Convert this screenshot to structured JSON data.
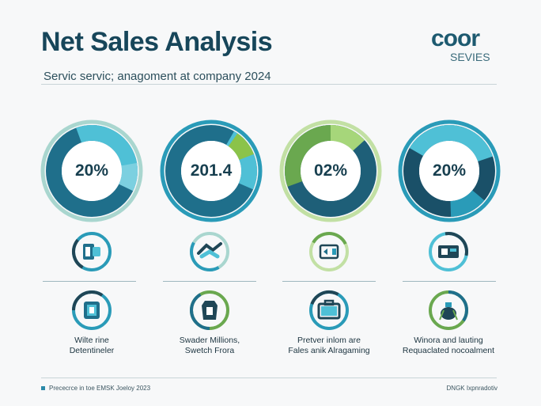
{
  "header": {
    "title": "Net Sales Analysis",
    "subtitle": "Servic servic; anagoment at company 2024"
  },
  "logo": {
    "main": "coor",
    "sub": "SEVIES"
  },
  "colors": {
    "navy": "#17465a",
    "teal_dark": "#1f6f8b",
    "teal": "#2a9bb8",
    "cyan": "#4fc0d6",
    "green": "#6aa84f",
    "light_green": "#a6d67a",
    "ring_pale": "#a9d6cf"
  },
  "cards": [
    {
      "value": "20%",
      "icon": "hand-tool-icon",
      "big_icon": "device-icon",
      "caption": [
        "Wilte rine",
        "Detentineler"
      ]
    },
    {
      "value": "201.4",
      "icon": "handshake-icon",
      "big_icon": "bag-icon",
      "caption": [
        "Swader Millions,",
        "Swetch Frora"
      ]
    },
    {
      "value": "02%",
      "icon": "wallet-card-icon",
      "big_icon": "briefcase-icon",
      "caption": [
        "Pretver inlom are",
        "Fales anik Alragaming"
      ]
    },
    {
      "value": "20%",
      "icon": "cash-register-icon",
      "big_icon": "money-bag-icon",
      "caption": [
        "Winora and lauting",
        "Requaclated nocoalment"
      ]
    }
  ],
  "footer": {
    "left": "Prececrce in toe EMSK Joeloy 2023",
    "right": "DNGK Ixpnradotiv"
  }
}
